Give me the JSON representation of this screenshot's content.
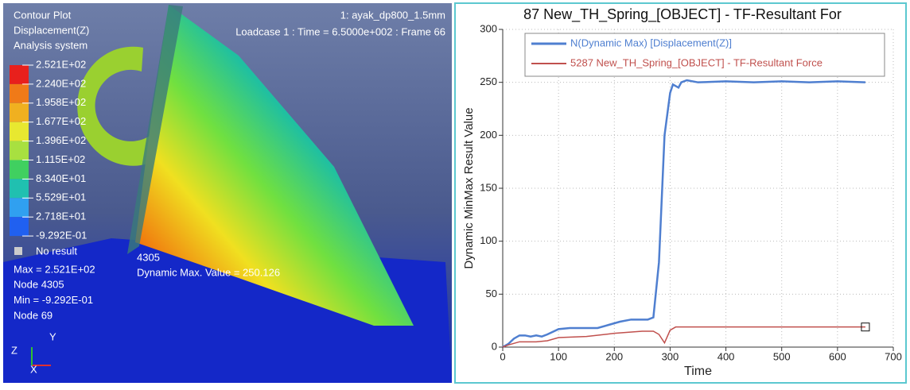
{
  "viewport": {
    "title_lines": [
      "Contour Plot",
      "Displacement(Z)",
      "Analysis system"
    ],
    "model": "1: ayak_dp800_1.5mm",
    "loadcase": "Loadcase 1 : Time = 6.5000e+002 : Frame 66",
    "legend_values": [
      "2.521E+02",
      "2.240E+02",
      "1.958E+02",
      "1.677E+02",
      "1.396E+02",
      "1.115E+02",
      "8.340E+01",
      "5.529E+01",
      "2.718E+01",
      "-9.292E-01"
    ],
    "no_result": "No result",
    "summary": [
      "Max = 2.521E+02",
      "Node 4305",
      "Min = -9.292E-01",
      "Node 69"
    ],
    "node_label": "4305",
    "dynamic_max": "Dynamic Max. Value =  250.126",
    "triad": [
      "Z",
      "X",
      "Y"
    ]
  },
  "chart_data": {
    "type": "line",
    "title": "87 New_TH_Spring_[OBJECT] - TF-Resultant For",
    "x_label": "Time",
    "y_label": "Dynamic MinMax Result Value",
    "xlim": [
      0,
      700
    ],
    "ylim": [
      0,
      300
    ],
    "xticks": [
      0,
      100,
      200,
      300,
      400,
      500,
      600,
      700
    ],
    "yticks": [
      0,
      50,
      100,
      150,
      200,
      250,
      300
    ],
    "grid": true,
    "series": [
      {
        "name": "N(Dynamic Max) [Displacement(Z)]",
        "color": "#4f7fd0",
        "x": [
          0,
          10,
          20,
          30,
          40,
          50,
          60,
          70,
          80,
          100,
          120,
          150,
          170,
          190,
          210,
          230,
          260,
          270,
          280,
          290,
          300,
          305,
          315,
          320,
          330,
          350,
          400,
          450,
          500,
          550,
          600,
          650
        ],
        "values": [
          0,
          3,
          8,
          11,
          11,
          10,
          11,
          10,
          12,
          17,
          18,
          18,
          18,
          21,
          24,
          26,
          26,
          28,
          80,
          200,
          240,
          248,
          245,
          250,
          252,
          250,
          251,
          250,
          251,
          250,
          251,
          250
        ]
      },
      {
        "name": "5287 New_TH_Spring_[OBJECT] - TF-Resultant Force",
        "color": "#c0504d",
        "x": [
          0,
          10,
          30,
          60,
          80,
          100,
          150,
          200,
          250,
          270,
          280,
          290,
          300,
          310,
          350,
          400,
          500,
          600,
          650
        ],
        "values": [
          0,
          2,
          5,
          5,
          6,
          9,
          10,
          13,
          15,
          15,
          12,
          4,
          16,
          19,
          19,
          19,
          19,
          19,
          19
        ]
      }
    ]
  }
}
